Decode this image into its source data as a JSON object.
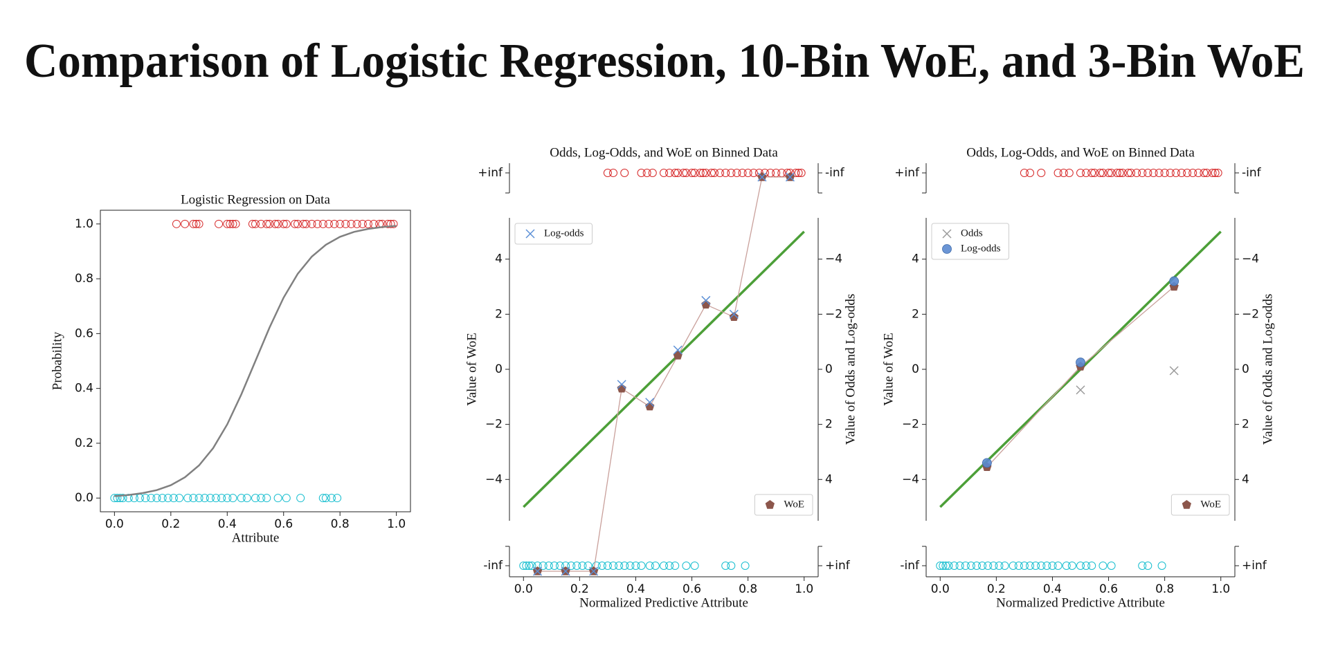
{
  "title": "Comparison of Logistic Regression, 10-Bin WoE, and 3-Bin WoE",
  "chart_data": [
    {
      "type": "scatter",
      "title": "Logistic Regression on Data",
      "xlabel": "Attribute",
      "ylabel": "Probability",
      "xlim": [
        -0.05,
        1.05
      ],
      "ylim": [
        -0.05,
        1.05
      ],
      "xticks": [
        {
          "value": 0,
          "label": "0.0"
        },
        {
          "value": 0.2,
          "label": "0.2"
        },
        {
          "value": 0.4,
          "label": "0.4"
        },
        {
          "value": 0.6,
          "label": "0.6"
        },
        {
          "value": 0.8,
          "label": "0.8"
        },
        {
          "value": 1,
          "label": "1.0"
        }
      ],
      "yticks": [
        {
          "value": 0,
          "label": "0.0"
        },
        {
          "value": 0.2,
          "label": "0.2"
        },
        {
          "value": 0.4,
          "label": "0.4"
        },
        {
          "value": 0.6,
          "label": "0.6"
        },
        {
          "value": 0.8,
          "label": "0.8"
        },
        {
          "value": 1,
          "label": "1.0"
        }
      ],
      "series": [
        {
          "marker": "open-circle",
          "color": "#d62728",
          "x": [
            0.22,
            0.25,
            0.28,
            0.29,
            0.3,
            0.37,
            0.4,
            0.41,
            0.42,
            0.43,
            0.49,
            0.5,
            0.52,
            0.54,
            0.55,
            0.57,
            0.58,
            0.6,
            0.61,
            0.64,
            0.65,
            0.67,
            0.68,
            0.7,
            0.72,
            0.74,
            0.76,
            0.78,
            0.8,
            0.82,
            0.84,
            0.86,
            0.88,
            0.9,
            0.92,
            0.94,
            0.95,
            0.97,
            0.98,
            0.99
          ],
          "values": [
            1,
            1,
            1,
            1,
            1,
            1,
            1,
            1,
            1,
            1,
            1,
            1,
            1,
            1,
            1,
            1,
            1,
            1,
            1,
            1,
            1,
            1,
            1,
            1,
            1,
            1,
            1,
            1,
            1,
            1,
            1,
            1,
            1,
            1,
            1,
            1,
            1,
            1,
            1,
            1
          ]
        },
        {
          "marker": "open-circle",
          "color": "#17becf",
          "x": [
            0,
            0.01,
            0.02,
            0.03,
            0.05,
            0.07,
            0.09,
            0.11,
            0.13,
            0.15,
            0.17,
            0.19,
            0.21,
            0.23,
            0.26,
            0.28,
            0.3,
            0.32,
            0.34,
            0.36,
            0.38,
            0.4,
            0.42,
            0.45,
            0.47,
            0.5,
            0.52,
            0.54,
            0.58,
            0.61,
            0.66,
            0.74,
            0.75,
            0.77,
            0.79
          ],
          "values": [
            0,
            0,
            0,
            0,
            0,
            0,
            0,
            0,
            0,
            0,
            0,
            0,
            0,
            0,
            0,
            0,
            0,
            0,
            0,
            0,
            0,
            0,
            0,
            0,
            0,
            0,
            0,
            0,
            0,
            0,
            0,
            0,
            0,
            0,
            0
          ]
        },
        {
          "marker": "line",
          "color": "#808080",
          "x": [
            0,
            0.05,
            0.1,
            0.15,
            0.2,
            0.25,
            0.3,
            0.35,
            0.4,
            0.45,
            0.5,
            0.55,
            0.6,
            0.65,
            0.7,
            0.75,
            0.8,
            0.85,
            0.9,
            0.95,
            1
          ],
          "values": [
            0.007,
            0.011,
            0.018,
            0.029,
            0.047,
            0.076,
            0.119,
            0.182,
            0.269,
            0.378,
            0.5,
            0.622,
            0.731,
            0.818,
            0.881,
            0.924,
            0.953,
            0.971,
            0.982,
            0.989,
            0.993
          ]
        }
      ]
    },
    {
      "type": "scatter",
      "title": "Odds, Log-Odds, and WoE on Binned Data",
      "xlabel": "Normalized Predictive Attribute",
      "ylabel": "Value of WoE",
      "y2label": "Value of Odds and Log-odds",
      "xlim": [
        -0.05,
        1.05
      ],
      "ylim": [
        -5.5,
        5.5
      ],
      "y2lim": [
        5.5,
        -5.5
      ],
      "xticks": [
        {
          "value": 0,
          "label": "0.0"
        },
        {
          "value": 0.2,
          "label": "0.2"
        },
        {
          "value": 0.4,
          "label": "0.4"
        },
        {
          "value": 0.6,
          "label": "0.6"
        },
        {
          "value": 0.8,
          "label": "0.8"
        },
        {
          "value": 1,
          "label": "1.0"
        }
      ],
      "yticks": [
        {
          "value": -4,
          "label": "−4"
        },
        {
          "value": -2,
          "label": "−2"
        },
        0,
        2,
        4
      ],
      "y2ticks": [
        {
          "value": -4,
          "label": "−4"
        },
        {
          "value": -2,
          "label": "−2"
        },
        0,
        2,
        4
      ],
      "panels": {
        "top": {
          "left": "+inf",
          "right": "-inf"
        },
        "bottom": {
          "left": "-inf",
          "right": "+inf"
        }
      },
      "series": [
        {
          "marker": "line",
          "color": "#4c9f38",
          "x": [
            0,
            1
          ],
          "values": [
            -5,
            5
          ]
        },
        {
          "marker": "open-circle",
          "color": "#d62728",
          "panel": "top",
          "x": [
            0.3,
            0.32,
            0.36,
            0.42,
            0.44,
            0.46,
            0.5,
            0.52,
            0.54,
            0.55,
            0.57,
            0.58,
            0.6,
            0.61,
            0.63,
            0.64,
            0.65,
            0.67,
            0.68,
            0.7,
            0.72,
            0.74,
            0.76,
            0.78,
            0.8,
            0.82,
            0.84,
            0.86,
            0.88,
            0.9,
            0.92,
            0.94,
            0.95,
            0.97,
            0.98,
            0.99
          ]
        },
        {
          "marker": "open-circle",
          "color": "#17becf",
          "panel": "bottom",
          "x": [
            0,
            0.01,
            0.02,
            0.03,
            0.05,
            0.07,
            0.09,
            0.11,
            0.13,
            0.15,
            0.17,
            0.19,
            0.21,
            0.23,
            0.26,
            0.28,
            0.3,
            0.32,
            0.34,
            0.36,
            0.38,
            0.4,
            0.42,
            0.45,
            0.47,
            0.5,
            0.52,
            0.54,
            0.58,
            0.61,
            0.72,
            0.74,
            0.79
          ]
        },
        {
          "name": "WoE",
          "marker": "pentagon",
          "color": "#8c564b",
          "line_color": "#c9a09b",
          "legend": "lower right",
          "x": [
            0.05,
            0.15,
            0.25,
            0.35,
            0.45,
            0.55,
            0.65,
            0.75,
            0.85,
            0.95
          ],
          "values": [
            null,
            null,
            null,
            -0.7,
            -1.35,
            0.5,
            2.35,
            1.9,
            null,
            null
          ],
          "inf_side": [
            "bottom",
            "bottom",
            "bottom",
            null,
            null,
            null,
            null,
            null,
            "top",
            "top"
          ]
        },
        {
          "name": "Log-odds",
          "marker": "x",
          "color": "#5b8fd6",
          "legend": "upper left",
          "x": [
            0.05,
            0.15,
            0.25,
            0.35,
            0.45,
            0.55,
            0.65,
            0.75,
            0.85,
            0.95
          ],
          "values": [
            null,
            null,
            null,
            -0.55,
            -1.2,
            0.7,
            2.5,
            2.0,
            null,
            null
          ],
          "inf_side": [
            "bottom",
            "bottom",
            "bottom",
            null,
            null,
            null,
            null,
            null,
            "top",
            "top"
          ]
        }
      ]
    },
    {
      "type": "scatter",
      "title": "Odds, Log-Odds, and WoE on Binned Data",
      "xlabel": "Normalized Predictive Attribute",
      "ylabel": "Value of WoE",
      "y2label": "Value of Odds and Log-odds",
      "xlim": [
        -0.05,
        1.05
      ],
      "ylim": [
        -5.5,
        5.5
      ],
      "y2lim": [
        5.5,
        -5.5
      ],
      "xticks": [
        {
          "value": 0,
          "label": "0.0"
        },
        {
          "value": 0.2,
          "label": "0.2"
        },
        {
          "value": 0.4,
          "label": "0.4"
        },
        {
          "value": 0.6,
          "label": "0.6"
        },
        {
          "value": 0.8,
          "label": "0.8"
        },
        {
          "value": 1,
          "label": "1.0"
        }
      ],
      "yticks": [
        {
          "value": -4,
          "label": "−4"
        },
        {
          "value": -2,
          "label": "−2"
        },
        0,
        2,
        4
      ],
      "y2ticks": [
        {
          "value": -4,
          "label": "−4"
        },
        {
          "value": -2,
          "label": "−2"
        },
        0,
        2,
        4
      ],
      "panels": {
        "top": {
          "left": "+inf",
          "right": "-inf"
        },
        "bottom": {
          "left": "-inf",
          "right": "+inf"
        }
      },
      "series": [
        {
          "marker": "line",
          "color": "#4c9f38",
          "x": [
            0,
            1
          ],
          "values": [
            -5,
            5
          ]
        },
        {
          "marker": "open-circle",
          "color": "#d62728",
          "panel": "top",
          "x": [
            0.3,
            0.32,
            0.36,
            0.42,
            0.44,
            0.46,
            0.5,
            0.52,
            0.54,
            0.55,
            0.57,
            0.58,
            0.6,
            0.61,
            0.63,
            0.64,
            0.65,
            0.67,
            0.68,
            0.7,
            0.72,
            0.74,
            0.76,
            0.78,
            0.8,
            0.82,
            0.84,
            0.86,
            0.88,
            0.9,
            0.92,
            0.94,
            0.95,
            0.97,
            0.98,
            0.99
          ]
        },
        {
          "marker": "open-circle",
          "color": "#17becf",
          "panel": "bottom",
          "x": [
            0,
            0.01,
            0.02,
            0.03,
            0.05,
            0.07,
            0.09,
            0.11,
            0.13,
            0.15,
            0.17,
            0.19,
            0.21,
            0.23,
            0.26,
            0.28,
            0.3,
            0.32,
            0.34,
            0.36,
            0.38,
            0.4,
            0.42,
            0.45,
            0.47,
            0.5,
            0.52,
            0.54,
            0.58,
            0.61,
            0.72,
            0.74,
            0.79
          ]
        },
        {
          "name": "WoE",
          "marker": "pentagon",
          "color": "#8c564b",
          "line_color": "#c9a09b",
          "legend": "lower right",
          "x": [
            0.1667,
            0.5,
            0.8333
          ],
          "values": [
            -3.55,
            0.1,
            3.0
          ]
        },
        {
          "name": "Odds",
          "marker": "x",
          "color": "#9a9a9a",
          "axis": "y2",
          "legend": "upper left",
          "x": [
            0.1667,
            0.5,
            0.8333
          ],
          "values": [
            null,
            0.75,
            0.05
          ]
        },
        {
          "name": "Log-odds",
          "marker": "circle",
          "color": "#5b8ad0",
          "legend": "upper left",
          "x": [
            0.1667,
            0.5,
            0.8333
          ],
          "values": [
            -3.4,
            0.25,
            3.2
          ]
        }
      ]
    }
  ]
}
